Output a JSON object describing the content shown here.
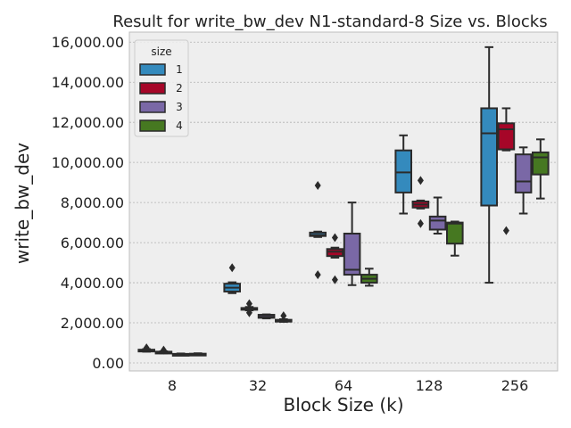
{
  "chart_data": {
    "type": "box",
    "title": "Result for write_bw_dev N1-standard-8 Size vs. Blocks",
    "xlabel": "Block Size (k)",
    "ylabel": "write_bw_dev",
    "categories": [
      "8",
      "32",
      "64",
      "128",
      "256"
    ],
    "ylim": [
      -400,
      16500
    ],
    "yticks": [
      0,
      2000,
      4000,
      6000,
      8000,
      10000,
      12000,
      14000,
      16000
    ],
    "ytick_labels": [
      "0.00",
      "2,000.00",
      "4,000.00",
      "6,000.00",
      "8,000.00",
      "10,000.00",
      "12,000.00",
      "14,000.00",
      "16,000.00"
    ],
    "grid": true,
    "legend": {
      "title": "size",
      "position": "top-left"
    },
    "series": [
      {
        "name": "1",
        "color": "#348ABD",
        "boxes": [
          {
            "whislo": 560,
            "q1": 590,
            "med": 620,
            "q3": 660,
            "whishi": 690,
            "fliers": [
              750
            ]
          },
          {
            "whislo": 3480,
            "q1": 3560,
            "med": 3750,
            "q3": 3950,
            "whishi": 4020,
            "fliers": [
              4750
            ]
          },
          {
            "whislo": 6280,
            "q1": 6330,
            "med": 6380,
            "q3": 6500,
            "whishi": 6550,
            "fliers": [
              8850,
              4400
            ]
          },
          {
            "whislo": 7450,
            "q1": 8500,
            "med": 9500,
            "q3": 10600,
            "whishi": 11350,
            "fliers": []
          },
          {
            "whislo": 4000,
            "q1": 7850,
            "med": 11450,
            "q3": 12700,
            "whishi": 15750,
            "fliers": []
          }
        ]
      },
      {
        "name": "2",
        "color": "#A60628",
        "boxes": [
          {
            "whislo": 480,
            "q1": 500,
            "med": 530,
            "q3": 560,
            "whishi": 580,
            "fliers": [
              640
            ]
          },
          {
            "whislo": 2620,
            "q1": 2660,
            "med": 2700,
            "q3": 2740,
            "whishi": 2790,
            "fliers": [
              2950,
              2500
            ]
          },
          {
            "whislo": 5250,
            "q1": 5330,
            "med": 5550,
            "q3": 5680,
            "whishi": 5750,
            "fliers": [
              6250,
              4150
            ]
          },
          {
            "whislo": 7700,
            "q1": 7750,
            "med": 7900,
            "q3": 8050,
            "whishi": 8100,
            "fliers": [
              9100,
              6950
            ]
          },
          {
            "whislo": 10600,
            "q1": 10650,
            "med": 11650,
            "q3": 11950,
            "whishi": 12700,
            "fliers": [
              6600
            ]
          }
        ]
      },
      {
        "name": "3",
        "color": "#7A68A6",
        "boxes": [
          {
            "whislo": 380,
            "q1": 400,
            "med": 420,
            "q3": 450,
            "whishi": 470,
            "fliers": []
          },
          {
            "whislo": 2220,
            "q1": 2250,
            "med": 2300,
            "q3": 2400,
            "whishi": 2420,
            "fliers": []
          },
          {
            "whislo": 3880,
            "q1": 4400,
            "med": 4650,
            "q3": 6450,
            "whishi": 8000,
            "fliers": []
          },
          {
            "whislo": 6450,
            "q1": 6650,
            "med": 7100,
            "q3": 7300,
            "whishi": 8250,
            "fliers": []
          },
          {
            "whislo": 7450,
            "q1": 8500,
            "med": 9050,
            "q3": 10400,
            "whishi": 10750,
            "fliers": []
          }
        ]
      },
      {
        "name": "4",
        "color": "#467821",
        "boxes": [
          {
            "whislo": 400,
            "q1": 410,
            "med": 430,
            "q3": 460,
            "whishi": 480,
            "fliers": []
          },
          {
            "whislo": 2050,
            "q1": 2070,
            "med": 2100,
            "q3": 2150,
            "whishi": 2180,
            "fliers": [
              2350
            ]
          },
          {
            "whislo": 3850,
            "q1": 4000,
            "med": 4200,
            "q3": 4400,
            "whishi": 4700,
            "fliers": []
          },
          {
            "whislo": 5350,
            "q1": 5950,
            "med": 6950,
            "q3": 7000,
            "whishi": 7050,
            "fliers": []
          },
          {
            "whislo": 8200,
            "q1": 9400,
            "med": 10250,
            "q3": 10500,
            "whishi": 11150,
            "fliers": []
          }
        ]
      }
    ]
  }
}
